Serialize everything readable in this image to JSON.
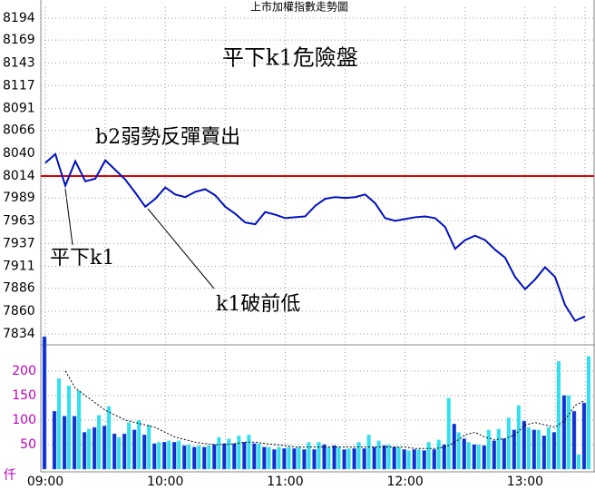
{
  "title": "上市加權指數走勢圖",
  "chart_data": [
    {
      "type": "line",
      "annotations": [
        "平下k1危險盤",
        "b2弱勢反彈賣出",
        "平下k1",
        "k1破前低"
      ],
      "xlim": [
        "09:00",
        "13:30"
      ],
      "xticks": [
        "09:00",
        "10:00",
        "11:00",
        "12:00",
        "13:00"
      ],
      "ylim": [
        7834,
        8194
      ],
      "yticks": [
        8194,
        8169,
        8143,
        8117,
        8091,
        8066,
        8040,
        8014,
        7989,
        7963,
        7937,
        7911,
        7886,
        7860,
        7834
      ],
      "grid": true,
      "ref_line": {
        "value": 8014,
        "color": "#e00000"
      },
      "x": [
        "09:00",
        "09:05",
        "09:10",
        "09:15",
        "09:20",
        "09:25",
        "09:30",
        "09:35",
        "09:40",
        "09:45",
        "09:50",
        "09:55",
        "10:00",
        "10:05",
        "10:10",
        "10:15",
        "10:20",
        "10:25",
        "10:30",
        "10:35",
        "10:40",
        "10:45",
        "10:50",
        "10:55",
        "11:00",
        "11:05",
        "11:10",
        "11:15",
        "11:20",
        "11:25",
        "11:30",
        "11:35",
        "11:40",
        "11:45",
        "11:50",
        "11:55",
        "12:00",
        "12:05",
        "12:10",
        "12:15",
        "12:20",
        "12:25",
        "12:30",
        "12:35",
        "12:40",
        "12:45",
        "12:50",
        "12:55",
        "13:00",
        "13:05",
        "13:10",
        "13:15",
        "13:20",
        "13:25",
        "13:30"
      ],
      "series": [
        {
          "color": "#0010c0",
          "values": [
            8029,
            8039,
            8003,
            8031,
            8008,
            8011,
            8032,
            8021,
            8010,
            7995,
            7979,
            7988,
            8001,
            7993,
            7990,
            7996,
            7999,
            7992,
            7979,
            7971,
            7961,
            7959,
            7973,
            7970,
            7966,
            7967,
            7968,
            7980,
            7988,
            7990,
            7989,
            7990,
            7993,
            7983,
            7966,
            7963,
            7965,
            7967,
            7968,
            7966,
            7956,
            7931,
            7941,
            7946,
            7941,
            7930,
            7921,
            7899,
            7885,
            7896,
            7910,
            7899,
            7867,
            7849,
            7854
          ]
        }
      ]
    },
    {
      "type": "bar",
      "unit": "仟",
      "ylim": [
        0,
        270
      ],
      "yticks": [
        50,
        100,
        150,
        200
      ],
      "grid": true,
      "series": [
        {
          "color": "#1030c8",
          "values": [
            270,
            118,
            108,
            108,
            75,
            85,
            88,
            72,
            72,
            80,
            70,
            52,
            55,
            55,
            48,
            45,
            45,
            50,
            52,
            52,
            55,
            52,
            45,
            40,
            42,
            42,
            40,
            40,
            50,
            48,
            40,
            42,
            42,
            45,
            48,
            45,
            40,
            40,
            38,
            40,
            50,
            92,
            62,
            50,
            48,
            58,
            62,
            80,
            98,
            80,
            68,
            75,
            150,
            118,
            135
          ]
        },
        {
          "color": "#30e0f0",
          "values": [
            0,
            185,
            170,
            160,
            82,
            110,
            128,
            65,
            95,
            100,
            90,
            55,
            58,
            58,
            50,
            48,
            48,
            65,
            62,
            68,
            70,
            52,
            45,
            45,
            45,
            45,
            55,
            55,
            45,
            45,
            42,
            55,
            70,
            58,
            50,
            45,
            38,
            40,
            55,
            60,
            145,
            75,
            55,
            50,
            80,
            82,
            105,
            130,
            85,
            80,
            85,
            220,
            150,
            30,
            230
          ]
        },
        {
          "type": "line",
          "color": "#000000",
          "values": [
            null,
            null,
            200,
            165,
            150,
            135,
            120,
            110,
            100,
            95,
            90,
            85,
            75,
            65,
            60,
            55,
            52,
            50,
            50,
            52,
            55,
            55,
            52,
            50,
            48,
            45,
            45,
            45,
            45,
            45,
            45,
            45,
            45,
            45,
            45,
            45,
            45,
            42,
            42,
            42,
            45,
            55,
            70,
            75,
            65,
            60,
            62,
            70,
            90,
            95,
            90,
            85,
            100,
            130,
            140
          ]
        }
      ]
    }
  ]
}
